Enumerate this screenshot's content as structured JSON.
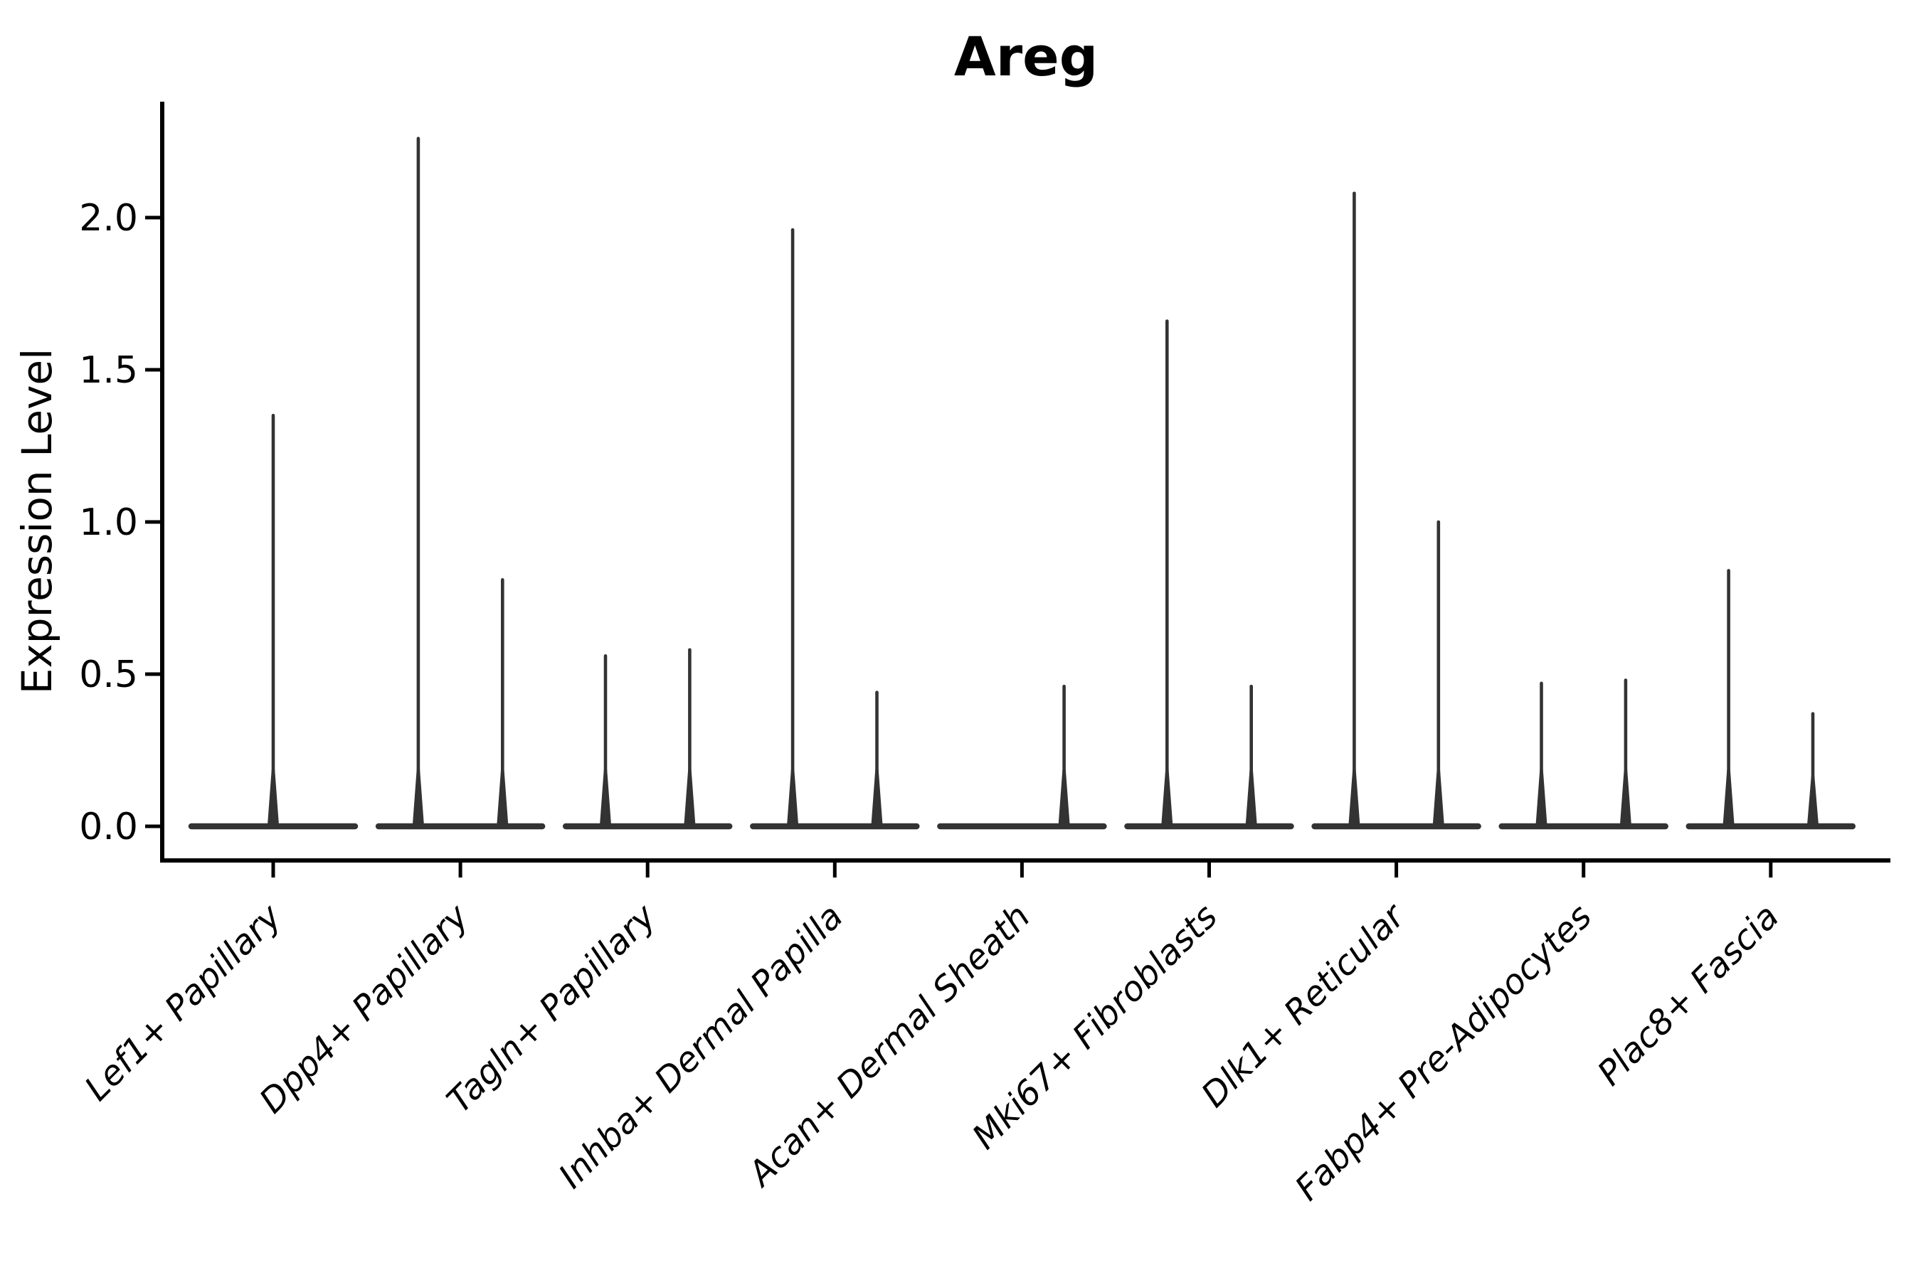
{
  "chart_data": {
    "type": "violin",
    "title": "Areg",
    "ylabel": "Expression Level",
    "xlabel": "",
    "ylim": [
      -0.11,
      2.37
    ],
    "grid": false,
    "legend": "none",
    "ytick_labels": [
      "0.0",
      "0.5",
      "1.0",
      "1.5",
      "2.0"
    ],
    "ytick_values": [
      0.0,
      0.5,
      1.0,
      1.5,
      2.0
    ],
    "violin_color": "#333333",
    "axis_color": "#000000",
    "categories": [
      "Lef1+ Papillary",
      "Dpp4+ Papillary",
      "Tagln+ Papillary",
      "Inhba+ Dermal Papilla",
      "Acan+ Dermal Sheath",
      "Mki67+ Fibroblasts",
      "Dlk1+ Reticular",
      "Fabp4+ Pre-Adipocytes",
      "Plac8+ Fascia"
    ],
    "violins": [
      {
        "category": "Lef1+ Papillary",
        "parts": [
          {
            "pos": "full",
            "max": 1.35
          }
        ]
      },
      {
        "category": "Dpp4+ Papillary",
        "parts": [
          {
            "pos": "left",
            "max": 2.26
          },
          {
            "pos": "right",
            "max": 0.81
          }
        ]
      },
      {
        "category": "Tagln+ Papillary",
        "parts": [
          {
            "pos": "left",
            "max": 0.56
          },
          {
            "pos": "right",
            "max": 0.58
          }
        ]
      },
      {
        "category": "Inhba+ Dermal Papilla",
        "parts": [
          {
            "pos": "left",
            "max": 1.96
          },
          {
            "pos": "right",
            "max": 0.44
          }
        ]
      },
      {
        "category": "Acan+ Dermal Sheath",
        "parts": [
          {
            "pos": "left",
            "max": 0.0
          },
          {
            "pos": "right",
            "max": 0.46
          }
        ]
      },
      {
        "category": "Mki67+ Fibroblasts",
        "parts": [
          {
            "pos": "left",
            "max": 1.66
          },
          {
            "pos": "right",
            "max": 0.46
          }
        ]
      },
      {
        "category": "Dlk1+ Reticular",
        "parts": [
          {
            "pos": "left",
            "max": 2.08
          },
          {
            "pos": "right",
            "max": 1.0
          }
        ]
      },
      {
        "category": "Fabp4+ Pre-Adipocytes",
        "parts": [
          {
            "pos": "left",
            "max": 0.47
          },
          {
            "pos": "right",
            "max": 0.48
          }
        ]
      },
      {
        "category": "Plac8+ Fascia",
        "parts": [
          {
            "pos": "left",
            "max": 0.84
          },
          {
            "pos": "right",
            "max": 0.37
          }
        ]
      }
    ]
  }
}
